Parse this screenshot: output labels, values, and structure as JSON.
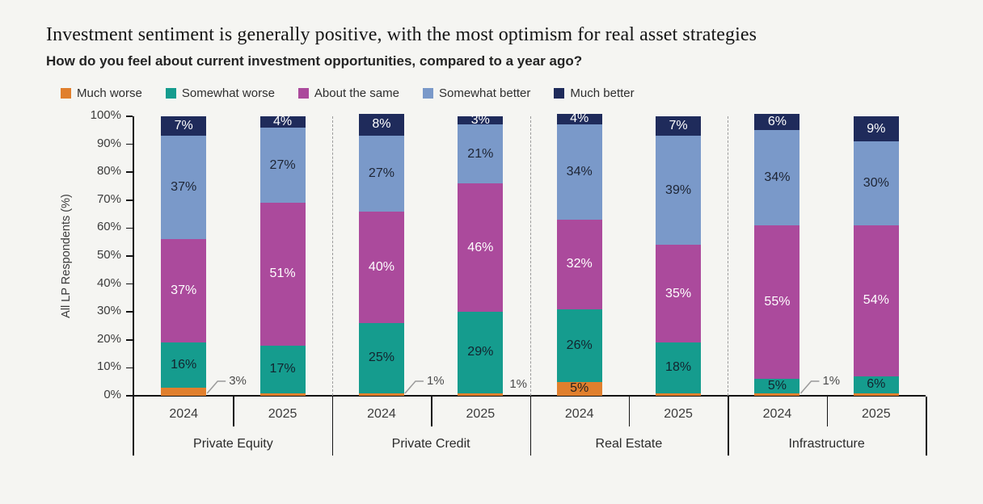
{
  "header": {
    "title": "Investment sentiment is generally positive, with the most optimism for real asset strategies",
    "subtitle": "How do you feel about current investment opportunities, compared to a year ago?"
  },
  "chart_data": {
    "type": "bar",
    "stacked": true,
    "legend_position": "top",
    "ylabel": "All LP Respondents (%)",
    "ylim": [
      0,
      100
    ],
    "yticks": [
      "0%",
      "10%",
      "20%",
      "30%",
      "40%",
      "50%",
      "60%",
      "70%",
      "80%",
      "90%",
      "100%"
    ],
    "series": [
      {
        "name": "Much worse",
        "color": "#e07f2d",
        "text_color": "#222222"
      },
      {
        "name": "Somewhat worse",
        "color": "#159c8e",
        "text_color": "#13232e"
      },
      {
        "name": "About the same",
        "color": "#ab4a9c",
        "text_color": "#ffffff"
      },
      {
        "name": "Somewhat better",
        "color": "#7a99c9",
        "text_color": "#1d2433"
      },
      {
        "name": "Much better",
        "color": "#1f2b5b",
        "text_color": "#ffffff"
      }
    ],
    "groups": [
      {
        "label": "Private Equity",
        "bars": [
          {
            "year": "2024",
            "values": [
              3,
              16,
              37,
              37,
              7
            ],
            "hide_first_label": true,
            "callout": {
              "text": "3%",
              "leader": true
            }
          },
          {
            "year": "2025",
            "values": [
              1,
              17,
              51,
              27,
              4
            ],
            "hide_first_label": true,
            "callout": null
          }
        ]
      },
      {
        "label": "Private Credit",
        "bars": [
          {
            "year": "2024",
            "values": [
              1,
              25,
              40,
              27,
              8
            ],
            "hide_first_label": true,
            "callout": {
              "text": "1%",
              "leader": true
            }
          },
          {
            "year": "2025",
            "values": [
              1,
              29,
              46,
              21,
              3
            ],
            "hide_first_label": true,
            "callout": {
              "text": "1%",
              "leader": false
            }
          }
        ]
      },
      {
        "label": "Real Estate",
        "bars": [
          {
            "year": "2024",
            "values": [
              5,
              26,
              32,
              34,
              4
            ],
            "hide_first_label": false,
            "callout": null
          },
          {
            "year": "2025",
            "values": [
              1,
              18,
              35,
              39,
              7
            ],
            "hide_first_label": true,
            "callout": null
          }
        ]
      },
      {
        "label": "Infrastructure",
        "bars": [
          {
            "year": "2024",
            "values": [
              1,
              5,
              55,
              34,
              6
            ],
            "hide_first_label": true,
            "callout": {
              "text": "1%",
              "leader": true
            }
          },
          {
            "year": "2025",
            "values": [
              1,
              6,
              54,
              30,
              9
            ],
            "hide_first_label": true,
            "callout": null
          }
        ]
      }
    ]
  },
  "colors": {
    "background": "#f5f5f2",
    "axis": "#141414",
    "separator": "#9b9b9b",
    "leader_line": "#9a9a9a",
    "tick_text": "#3c3c3c",
    "callout_text": "#4b4b4b"
  }
}
